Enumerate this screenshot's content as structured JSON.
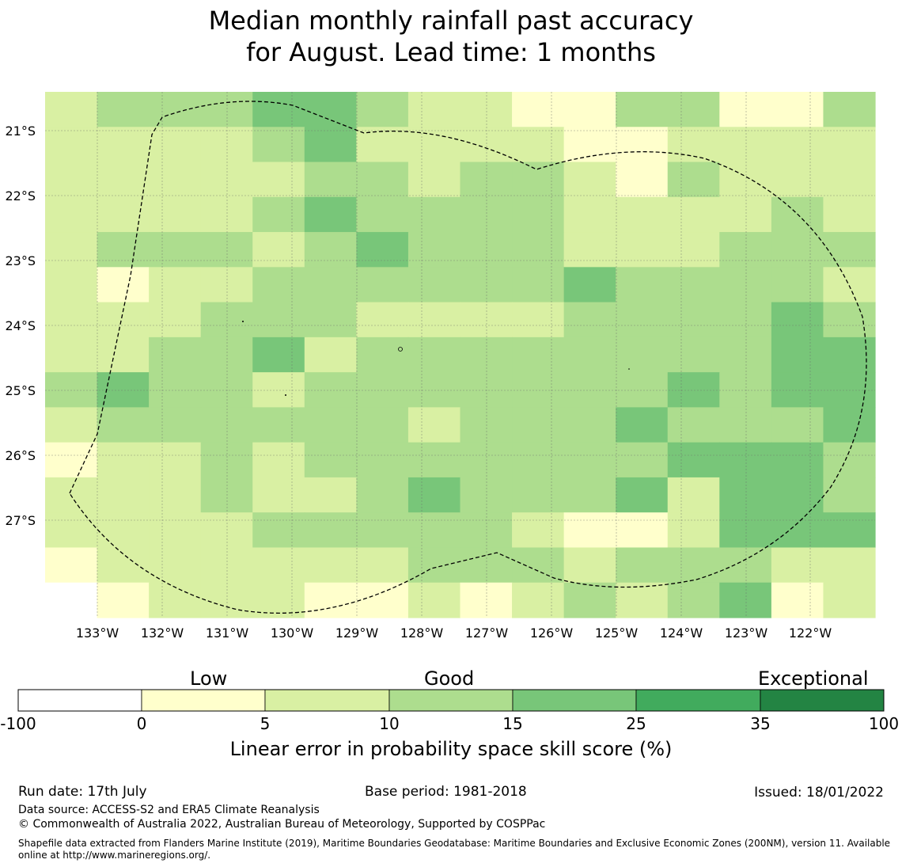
{
  "title_line1": "Median monthly rainfall past accuracy",
  "title_line2": "for August. Lead time: 1 months",
  "map": {
    "lon_labels": [
      "133°W",
      "132°W",
      "131°W",
      "130°W",
      "129°W",
      "128°W",
      "127°W",
      "126°W",
      "125°W",
      "124°W",
      "123°W",
      "122°W"
    ],
    "lat_labels": [
      "21°S",
      "22°S",
      "23°S",
      "24°S",
      "25°S",
      "26°S",
      "27°S"
    ],
    "skill_grid": [
      [
        1,
        2,
        2,
        2,
        3,
        3,
        2,
        1,
        1,
        0,
        0,
        2,
        2,
        0,
        0,
        2
      ],
      [
        1,
        1,
        1,
        1,
        2,
        3,
        1,
        1,
        1,
        1,
        0,
        0,
        1,
        1,
        1,
        1
      ],
      [
        1,
        1,
        1,
        1,
        1,
        2,
        2,
        1,
        2,
        2,
        1,
        0,
        2,
        1,
        1,
        1
      ],
      [
        1,
        1,
        1,
        1,
        2,
        3,
        2,
        2,
        2,
        2,
        1,
        1,
        1,
        1,
        2,
        1
      ],
      [
        1,
        2,
        2,
        2,
        1,
        2,
        3,
        2,
        2,
        2,
        1,
        1,
        1,
        2,
        2,
        2
      ],
      [
        1,
        0,
        1,
        1,
        2,
        2,
        2,
        2,
        2,
        2,
        3,
        2,
        2,
        2,
        2,
        1
      ],
      [
        1,
        1,
        1,
        2,
        2,
        2,
        1,
        1,
        1,
        1,
        2,
        2,
        2,
        2,
        3,
        2
      ],
      [
        1,
        1,
        2,
        2,
        3,
        1,
        2,
        2,
        2,
        2,
        2,
        2,
        2,
        2,
        3,
        3
      ],
      [
        2,
        3,
        2,
        2,
        1,
        2,
        2,
        2,
        2,
        2,
        2,
        2,
        3,
        2,
        3,
        3
      ],
      [
        1,
        2,
        2,
        2,
        2,
        2,
        2,
        1,
        2,
        2,
        2,
        3,
        2,
        2,
        2,
        3
      ],
      [
        0,
        1,
        1,
        2,
        1,
        2,
        2,
        2,
        2,
        2,
        2,
        2,
        3,
        3,
        3,
        2
      ],
      [
        1,
        1,
        1,
        2,
        1,
        1,
        2,
        3,
        2,
        2,
        2,
        3,
        1,
        3,
        3,
        2
      ],
      [
        1,
        1,
        1,
        1,
        2,
        2,
        2,
        2,
        2,
        1,
        0,
        0,
        1,
        3,
        3,
        3
      ],
      [
        0,
        1,
        1,
        1,
        1,
        1,
        1,
        2,
        2,
        2,
        1,
        2,
        2,
        2,
        1,
        1
      ],
      [
        -1,
        0,
        1,
        1,
        1,
        0,
        0,
        1,
        0,
        1,
        2,
        1,
        2,
        3,
        0,
        1
      ]
    ]
  },
  "colorbar": {
    "category_labels": [
      "Low",
      "Good",
      "Exceptional"
    ],
    "ticks": [
      "-100",
      "0",
      "5",
      "10",
      "15",
      "25",
      "35",
      "100"
    ],
    "colors": [
      "#ffffff",
      "#ffffcc",
      "#d9f0a3",
      "#addd8e",
      "#78c679",
      "#41ab5d",
      "#238443"
    ],
    "title": "Linear error in probability space skill score (%)"
  },
  "footer": {
    "run_date": "Run date: 17th July",
    "base_period": "Base period: 1981-2018",
    "issued": "Issued: 18/01/2022",
    "data_source": "Data source: ACCESS-S2 and ERA5 Climate Reanalysis",
    "copyright": "© Commonwealth of Australia 2022, Australian Bureau of Meteorology, Supported by COSPPac",
    "shapefile_line1": "Shapefile data extracted from Flanders Marine Institute (2019), Maritime Boundaries Geodatabase: Maritime Boundaries and Exclusive Economic Zones (200NM), version 11. Available",
    "shapefile_line2": "online at http://www.marineregions.org/."
  }
}
